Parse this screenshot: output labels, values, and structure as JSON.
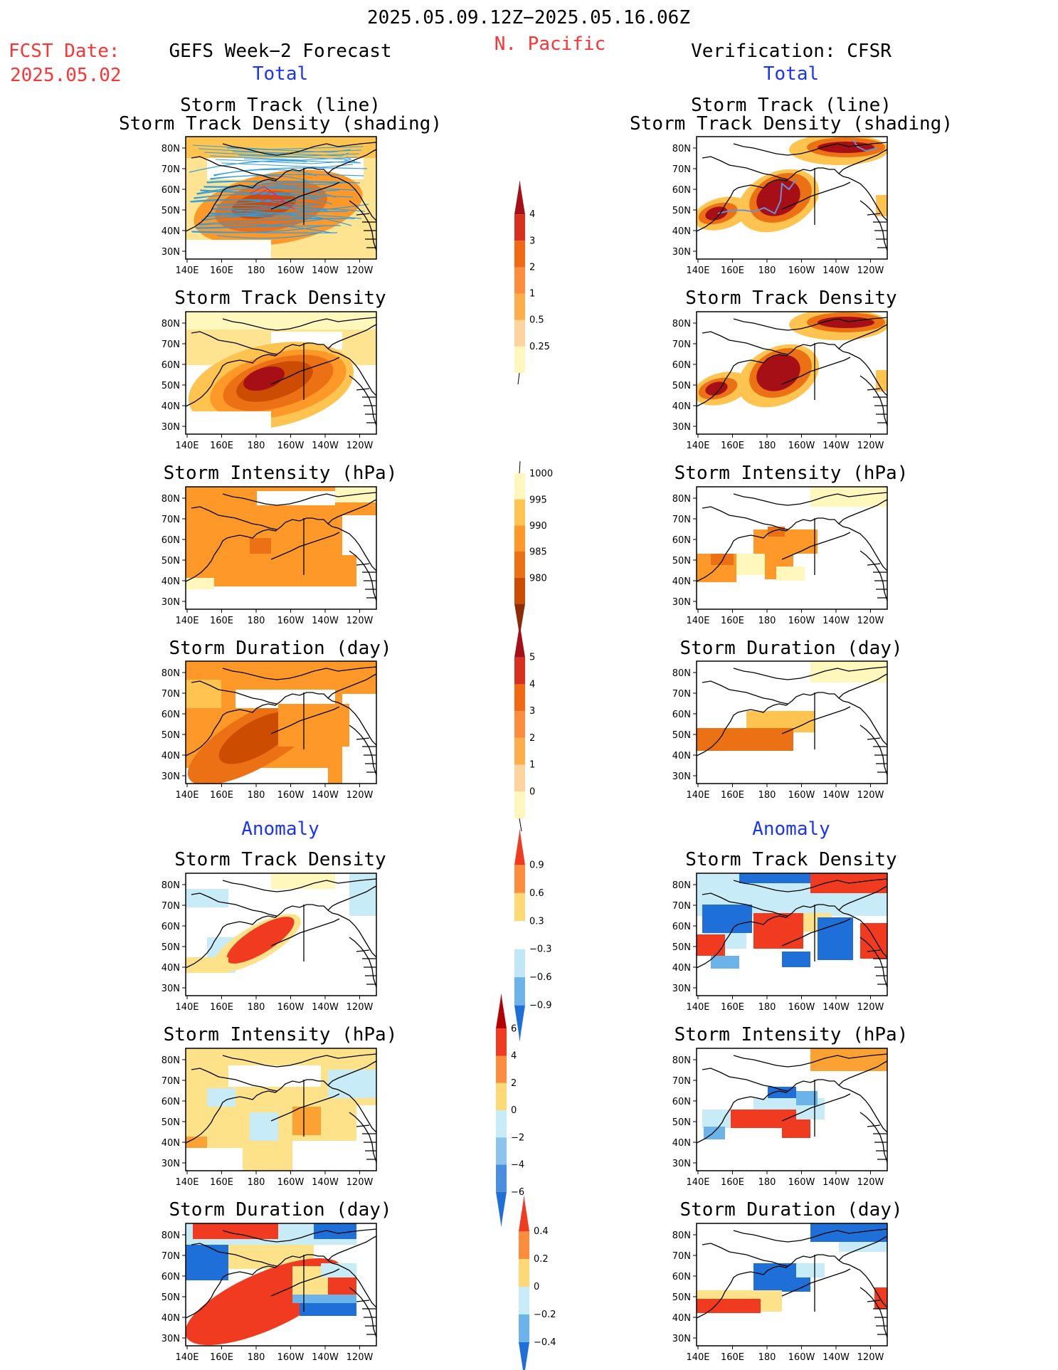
{
  "header": {
    "period": "2025.05.09.12Z−2025.05.16.06Z",
    "region": "N. Pacific",
    "fcst_label": "FCST Date:",
    "fcst_date": "2025.05.02",
    "left_title": "GEFS Week−2 Forecast",
    "right_title": "Verification: CFSR",
    "left_total": "Total",
    "right_total": "Total",
    "left_anomaly": "Anomaly",
    "right_anomaly": "Anomaly"
  },
  "panel_titles": {
    "track_line": "Storm Track (line)",
    "track_shading": "Storm Track Density (shading)",
    "density": "Storm Track Density",
    "intensity": "Storm Intensity (hPa)",
    "duration": "Storm Duration (day)"
  },
  "axes": {
    "lat_labels": [
      "80N",
      "70N",
      "60N",
      "50N",
      "40N",
      "30N"
    ],
    "lon_labels": [
      "140E",
      "160E",
      "180",
      "160W",
      "140W",
      "120W"
    ]
  },
  "colorbars": [
    {
      "id": "density_total",
      "labels": [
        "4",
        "3",
        "2",
        "1",
        "0.5",
        "0.25"
      ],
      "colors": [
        "#a50f15",
        "#d7301f",
        "#f16913",
        "#fd8d3c",
        "#fdae4b",
        "#fdd49e",
        "#fff7bc"
      ]
    },
    {
      "id": "intensity_total",
      "labels": [
        "1000",
        "995",
        "990",
        "985",
        "980"
      ],
      "colors": [
        "#fff7bc",
        "#fec44f",
        "#fe9929",
        "#ec7014",
        "#cc4c02",
        "#8c2d04"
      ]
    },
    {
      "id": "duration_total",
      "labels": [
        "5",
        "4",
        "3",
        "2",
        "1",
        "0"
      ],
      "colors": [
        "#a50f15",
        "#d7301f",
        "#f16913",
        "#fd8d3c",
        "#fdae4b",
        "#fdd49e",
        "#fff7bc"
      ]
    },
    {
      "id": "density_anom",
      "labels": [
        "0.9",
        "0.6",
        "0.3",
        "−0.3",
        "−0.6",
        "−0.9"
      ],
      "colors": [
        "#f03b20",
        "#fd8d3c",
        "#fed976",
        "#ffffff",
        "#bfe7f5",
        "#6cb3ea",
        "#1f6fd8"
      ]
    },
    {
      "id": "intensity_anom",
      "labels": [
        "6",
        "4",
        "2",
        "0",
        "−2",
        "−4",
        "−6"
      ],
      "colors": [
        "#b30000",
        "#f03b20",
        "#fd8d3c",
        "#fed976",
        "#c7ecf7",
        "#8cc4ee",
        "#4a8ee0",
        "#1f6fd8"
      ]
    },
    {
      "id": "duration_anom",
      "labels": [
        "0.4",
        "0.2",
        "0",
        "−0.2",
        "−0.4"
      ],
      "colors": [
        "#f03b20",
        "#fd8d3c",
        "#fed976",
        "#c7ecf7",
        "#6cb3ea",
        "#1f6fd8"
      ]
    }
  ]
}
